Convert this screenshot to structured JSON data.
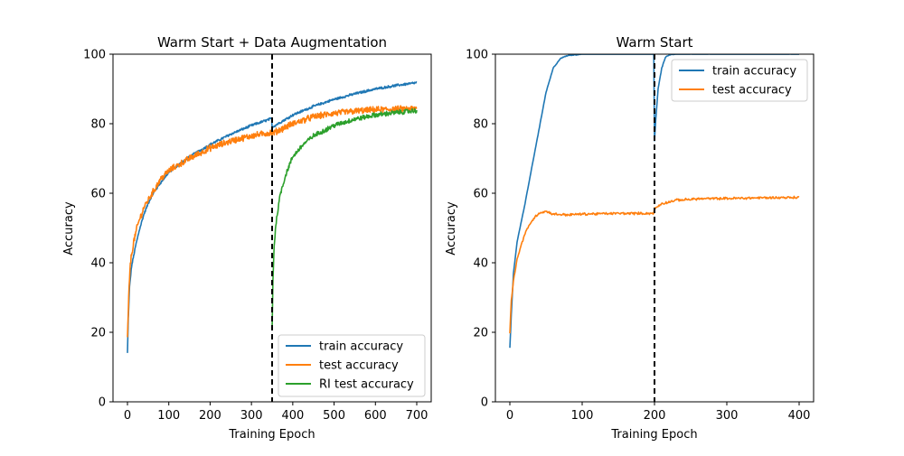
{
  "chart_data": [
    {
      "type": "line",
      "title": "Warm Start + Data Augmentation",
      "xlabel": "Training Epoch",
      "ylabel": "Accuracy",
      "xlim": [
        -35,
        735
      ],
      "ylim": [
        0,
        100
      ],
      "xticks": [
        0,
        100,
        200,
        300,
        400,
        500,
        600,
        700
      ],
      "yticks": [
        0,
        20,
        40,
        60,
        80,
        100
      ],
      "grid": false,
      "legend_position": "lower-right",
      "vertical_line": {
        "x": 350,
        "style": "dashed",
        "color": "#000000"
      },
      "series": [
        {
          "name": "train accuracy",
          "color": "#1f77b4",
          "points": [
            [
              0,
              14
            ],
            [
              2,
              24
            ],
            [
              5,
              33
            ],
            [
              10,
              39
            ],
            [
              20,
              45
            ],
            [
              30,
              50
            ],
            [
              40,
              54
            ],
            [
              50,
              57
            ],
            [
              60,
              59.5
            ],
            [
              80,
              63
            ],
            [
              100,
              66
            ],
            [
              150,
              70.5
            ],
            [
              200,
              74
            ],
            [
              250,
              77
            ],
            [
              300,
              79.5
            ],
            [
              349,
              81.5
            ],
            [
              350,
              79
            ],
            [
              400,
              82.5
            ],
            [
              450,
              85
            ],
            [
              500,
              87
            ],
            [
              550,
              88.6
            ],
            [
              600,
              90
            ],
            [
              650,
              91
            ],
            [
              700,
              91.8
            ]
          ],
          "noise": 0.3
        },
        {
          "name": "test accuracy",
          "color": "#ff7f0e",
          "points": [
            [
              0,
              18
            ],
            [
              3,
              30
            ],
            [
              7,
              40
            ],
            [
              15,
              46
            ],
            [
              25,
              51
            ],
            [
              40,
              56
            ],
            [
              60,
              60
            ],
            [
              80,
              64
            ],
            [
              100,
              66.5
            ],
            [
              150,
              70
            ],
            [
              200,
              73
            ],
            [
              250,
              75
            ],
            [
              300,
              76.5
            ],
            [
              349,
              77.5
            ],
            [
              350,
              77.2
            ],
            [
              400,
              80
            ],
            [
              450,
              82
            ],
            [
              500,
              83
            ],
            [
              550,
              83.6
            ],
            [
              600,
              84
            ],
            [
              650,
              84.2
            ],
            [
              700,
              84.3
            ]
          ],
          "noise": 0.8
        },
        {
          "name": "RI test accuracy",
          "color": "#2ca02c",
          "points": [
            [
              350,
              21
            ],
            [
              352,
              35
            ],
            [
              355,
              45
            ],
            [
              360,
              52
            ],
            [
              370,
              60
            ],
            [
              385,
              66
            ],
            [
              400,
              70.5
            ],
            [
              425,
              74
            ],
            [
              450,
              76.5
            ],
            [
              500,
              79.5
            ],
            [
              550,
              81.3
            ],
            [
              600,
              82.5
            ],
            [
              650,
              83.2
            ],
            [
              700,
              83.8
            ]
          ],
          "noise": 0.6
        }
      ]
    },
    {
      "type": "line",
      "title": "Warm Start",
      "xlabel": "Training Epoch",
      "ylabel": "Accuracy",
      "xlim": [
        -20,
        420
      ],
      "ylim": [
        0,
        100
      ],
      "xticks": [
        0,
        100,
        200,
        300,
        400
      ],
      "yticks": [
        0,
        20,
        40,
        60,
        80,
        100
      ],
      "grid": false,
      "legend_position": "upper-right",
      "vertical_line": {
        "x": 200,
        "style": "dashed",
        "color": "#000000"
      },
      "series": [
        {
          "name": "train accuracy",
          "color": "#1f77b4",
          "points": [
            [
              0,
              15.5
            ],
            [
              2,
              25
            ],
            [
              5,
              37
            ],
            [
              10,
              46
            ],
            [
              20,
              56
            ],
            [
              30,
              67
            ],
            [
              40,
              78
            ],
            [
              50,
              89
            ],
            [
              60,
              96
            ],
            [
              70,
              98.8
            ],
            [
              80,
              99.6
            ],
            [
              100,
              100
            ],
            [
              199,
              100
            ],
            [
              200,
              75
            ],
            [
              202,
              82
            ],
            [
              205,
              90
            ],
            [
              210,
              96
            ],
            [
              215,
              99
            ],
            [
              220,
              99.8
            ],
            [
              230,
              100
            ],
            [
              400,
              100
            ]
          ],
          "noise": 0.1
        },
        {
          "name": "test accuracy",
          "color": "#ff7f0e",
          "points": [
            [
              0,
              20
            ],
            [
              2,
              29
            ],
            [
              5,
              35
            ],
            [
              10,
              41
            ],
            [
              20,
              48
            ],
            [
              30,
              52
            ],
            [
              40,
              54.3
            ],
            [
              50,
              54.8
            ],
            [
              60,
              54
            ],
            [
              80,
              53.8
            ],
            [
              100,
              54
            ],
            [
              150,
              54.2
            ],
            [
              199,
              54.2
            ],
            [
              200,
              55.5
            ],
            [
              210,
              57
            ],
            [
              230,
              58
            ],
            [
              260,
              58.4
            ],
            [
              300,
              58.5
            ],
            [
              350,
              58.7
            ],
            [
              400,
              58.8
            ]
          ],
          "noise": 0.3
        }
      ]
    }
  ]
}
